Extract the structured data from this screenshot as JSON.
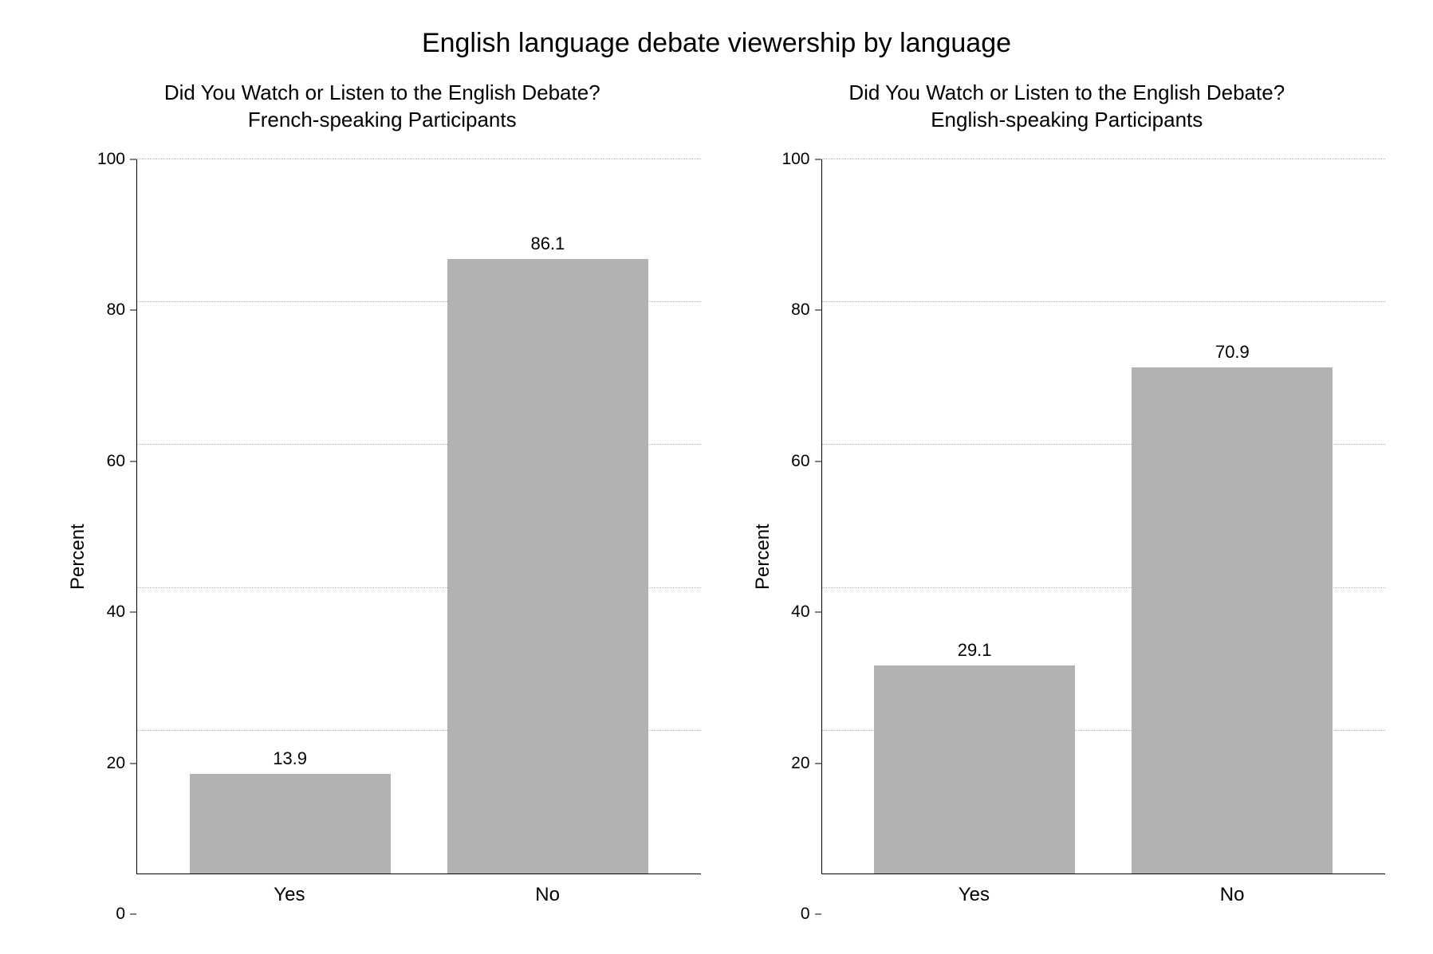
{
  "main_title": "English language debate viewership by language",
  "background_color": "#ffffff",
  "bar_color": "#b2b2b2",
  "grid_color": "#b2b2b2",
  "axis_color": "#000000",
  "text_color": "#000000",
  "main_title_fontsize": 34,
  "subtitle_fontsize": 26,
  "axis_label_fontsize": 24,
  "tick_label_fontsize": 21,
  "value_label_fontsize": 22,
  "ylim": [
    0,
    100
  ],
  "ytick_step": 20,
  "yticks": [
    0,
    20,
    40,
    60,
    80,
    100
  ],
  "panels": [
    {
      "subtitle_line1": "Did You Watch or Listen to the English Debate?",
      "subtitle_line2": "French-speaking Participants",
      "ylabel": "Percent",
      "type": "bar",
      "categories": [
        "Yes",
        "No"
      ],
      "values": [
        13.9,
        86.1
      ],
      "bar_width": 0.78
    },
    {
      "subtitle_line1": "Did You Watch or Listen to the English Debate?",
      "subtitle_line2": "English-speaking Participants",
      "ylabel": "Percent",
      "type": "bar",
      "categories": [
        "Yes",
        "No"
      ],
      "values": [
        29.1,
        70.9
      ],
      "bar_width": 0.78
    }
  ]
}
